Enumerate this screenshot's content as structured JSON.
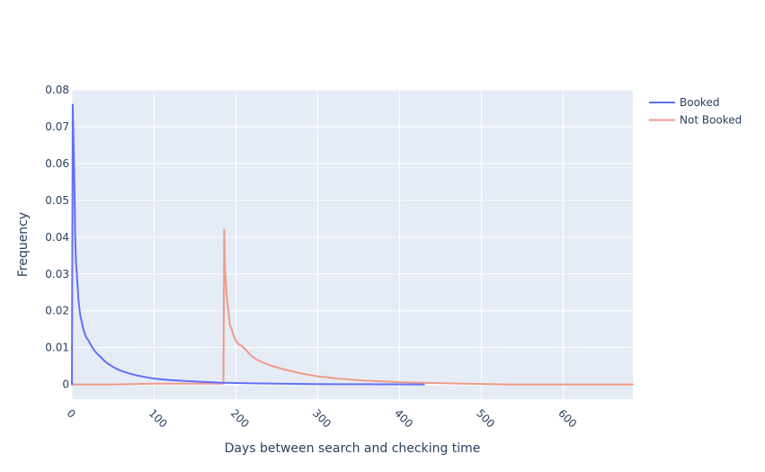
{
  "chart_data": {
    "type": "line",
    "title": "",
    "xlabel": "Days between search and checking time",
    "ylabel": "Frequency",
    "xlim": [
      0,
      685
    ],
    "ylim": [
      -0.004,
      0.08
    ],
    "x_ticks": [
      0,
      100,
      200,
      300,
      400,
      500,
      600
    ],
    "x_tick_labels": [
      "0",
      "100",
      "200",
      "300",
      "400",
      "500",
      "600"
    ],
    "y_ticks": [
      0,
      0.01,
      0.02,
      0.03,
      0.04,
      0.05,
      0.06,
      0.07,
      0.08
    ],
    "y_tick_labels": [
      "0",
      "0.01",
      "0.02",
      "0.03",
      "0.04",
      "0.05",
      "0.06",
      "0.07",
      "0.08"
    ],
    "grid": true,
    "background_color": "#e5ecf6",
    "legend_position": "right",
    "series": [
      {
        "name": "Booked",
        "color": "#636efa",
        "x": [
          0,
          1,
          2,
          3,
          4,
          5,
          6,
          8,
          10,
          12,
          14,
          17,
          20,
          25,
          30,
          35,
          40,
          45,
          50,
          55,
          60,
          70,
          80,
          90,
          100,
          120,
          140,
          160,
          180,
          200,
          220,
          250,
          300,
          350,
          400,
          430
        ],
        "y": [
          0.0,
          0.076,
          0.066,
          0.055,
          0.04,
          0.033,
          0.03,
          0.023,
          0.019,
          0.017,
          0.015,
          0.013,
          0.012,
          0.01,
          0.0085,
          0.0075,
          0.0063,
          0.0055,
          0.0048,
          0.0042,
          0.0037,
          0.003,
          0.0024,
          0.002,
          0.0016,
          0.0012,
          0.0009,
          0.0007,
          0.0005,
          0.0004,
          0.0003,
          0.0002,
          0.0001,
          5e-05,
          3e-05,
          0.0
        ]
      },
      {
        "name": "Not Booked",
        "color": "#ef9a89",
        "x": [
          0,
          50,
          100,
          150,
          183,
          185,
          186,
          187,
          189,
          191,
          193,
          195,
          198,
          200,
          203,
          207,
          212,
          218,
          225,
          235,
          245,
          260,
          280,
          300,
          330,
          360,
          400,
          440,
          480,
          510,
          530,
          560,
          600,
          650,
          685
        ],
        "y": [
          0.0,
          0.0,
          0.0002,
          0.0002,
          0.0002,
          0.0003,
          0.042,
          0.031,
          0.024,
          0.02,
          0.016,
          0.015,
          0.013,
          0.012,
          0.011,
          0.0105,
          0.0095,
          0.008,
          0.0068,
          0.0058,
          0.005,
          0.004,
          0.003,
          0.0022,
          0.0015,
          0.001,
          0.0006,
          0.0004,
          0.0002,
          0.0001,
          0.0,
          0.0,
          0.0,
          0.0,
          0.0
        ]
      }
    ]
  }
}
